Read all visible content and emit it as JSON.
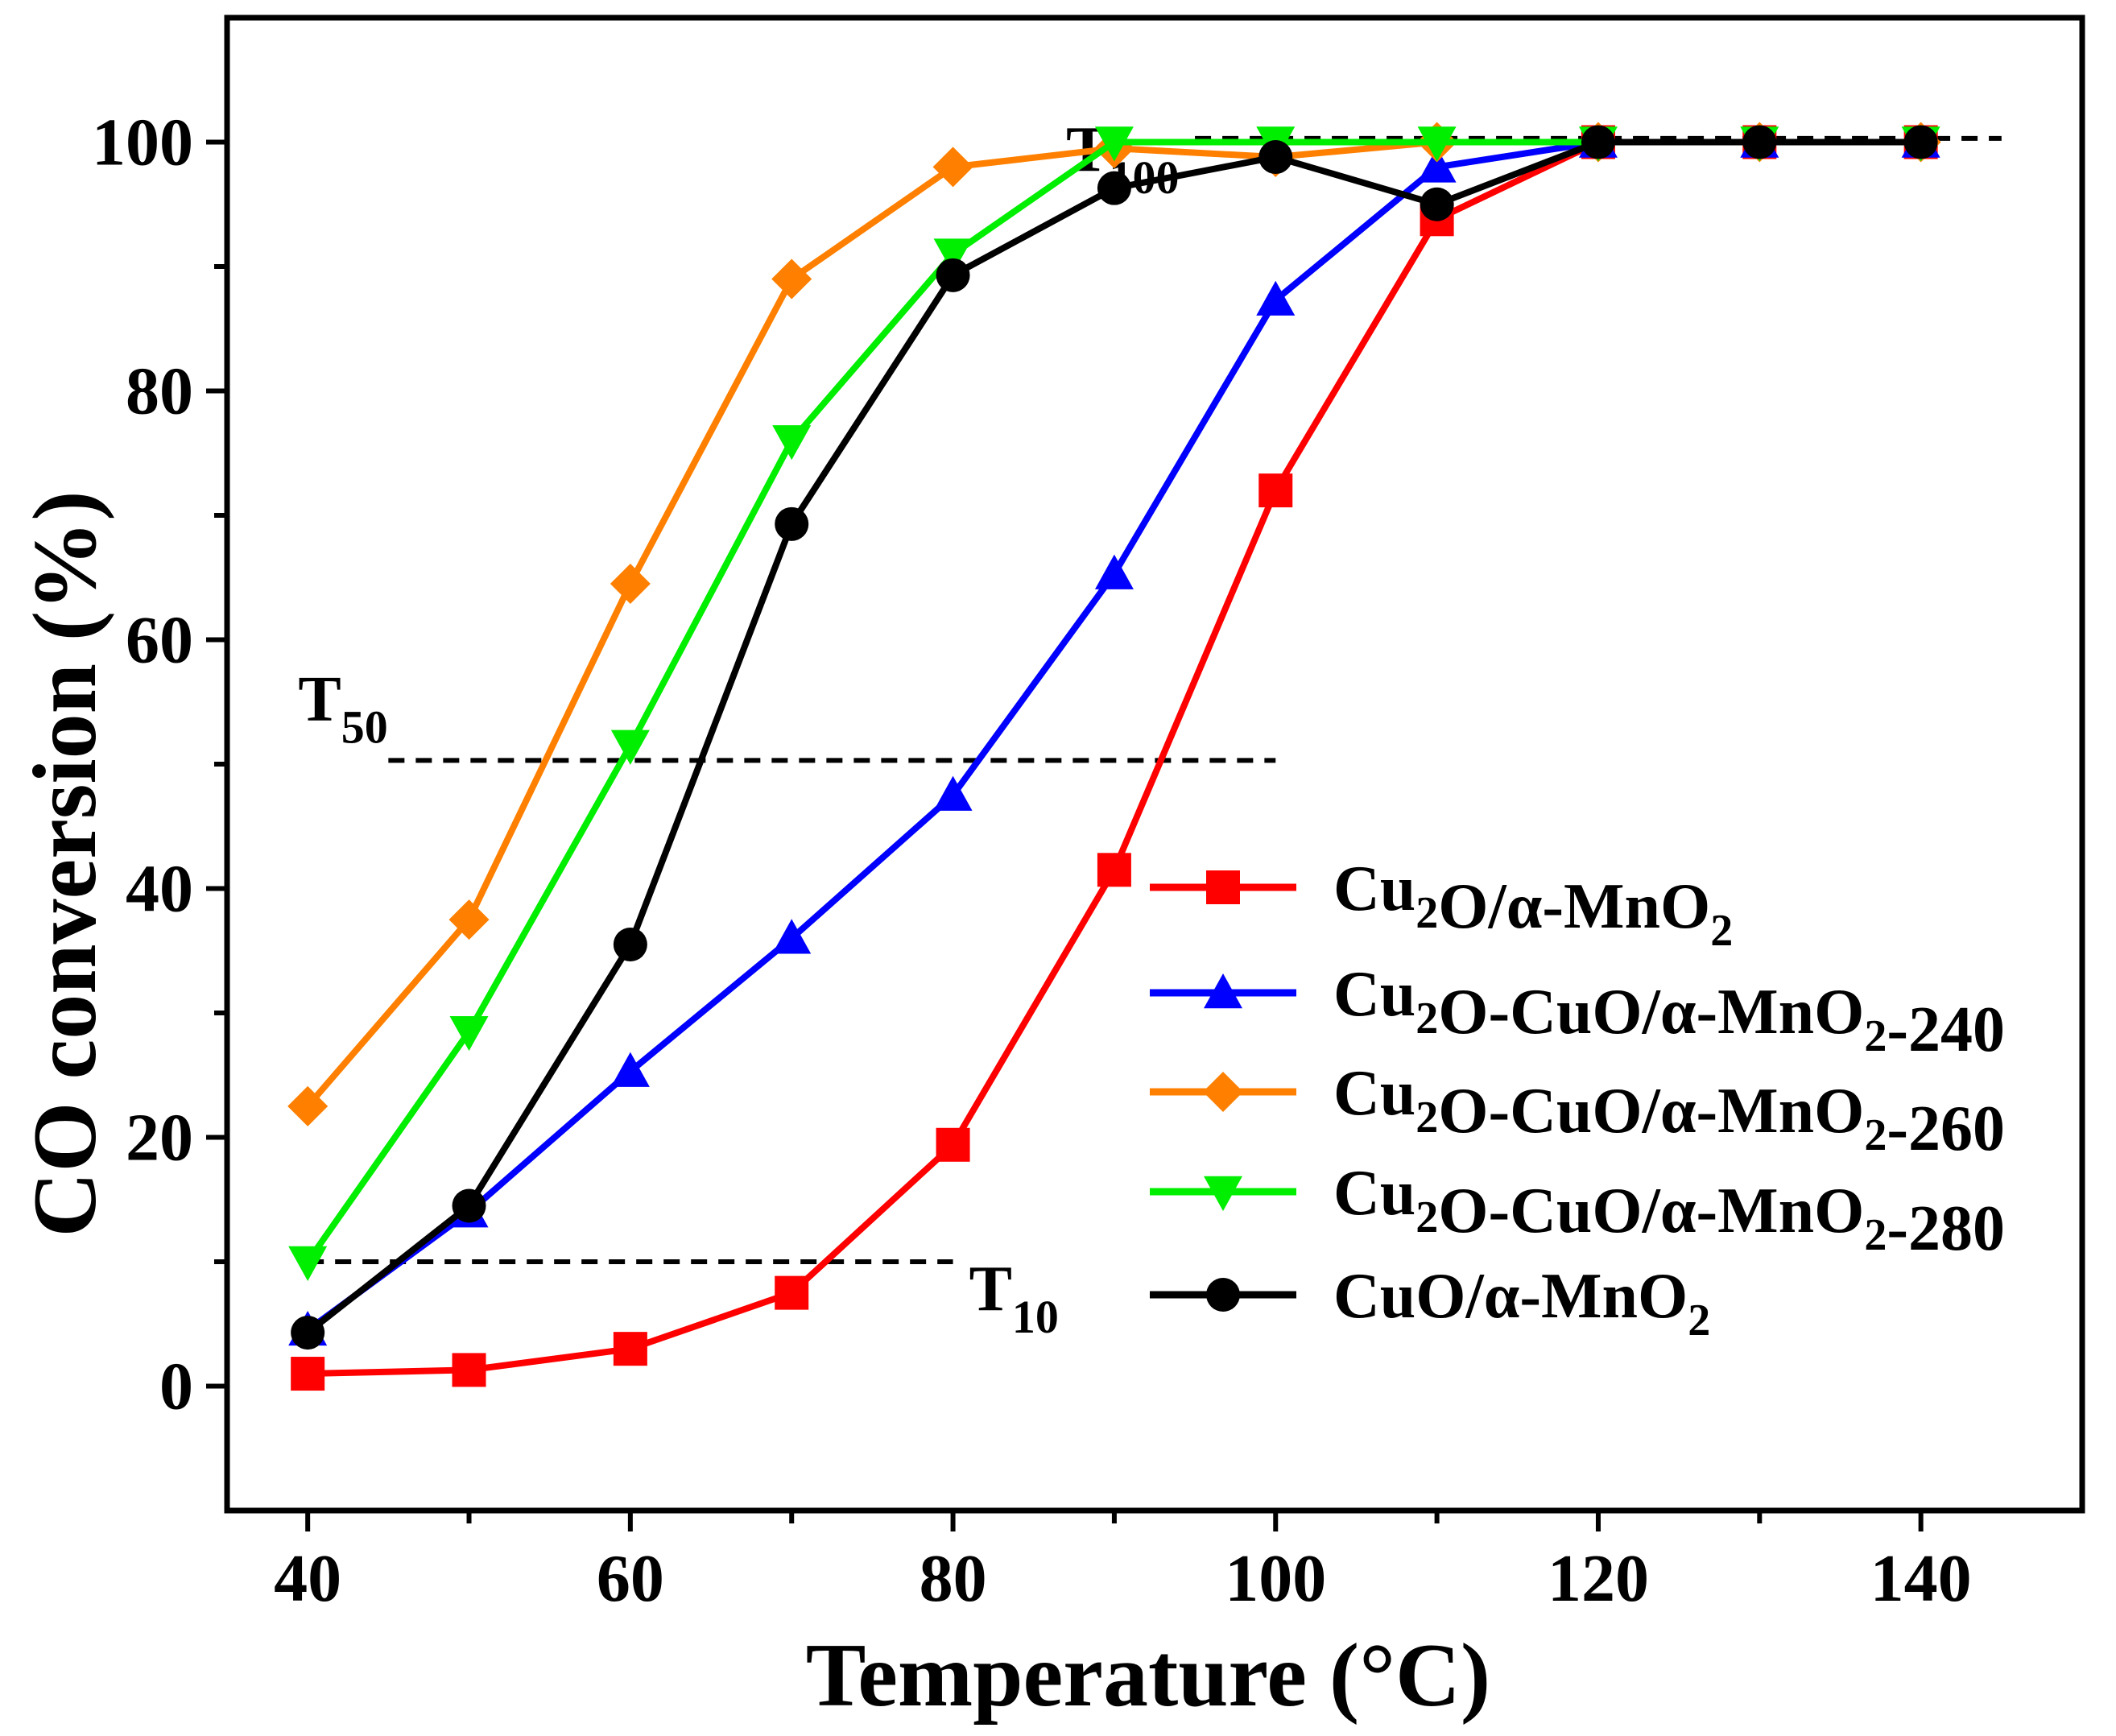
{
  "chart_data": {
    "type": "line",
    "xlabel": "Temperature (°C)",
    "ylabel": "CO conversion (%)",
    "xlim": [
      35,
      150
    ],
    "ylim": [
      -10,
      110
    ],
    "xticks": [
      40,
      60,
      80,
      100,
      120,
      140
    ],
    "yticks": [
      0,
      20,
      40,
      60,
      80,
      100
    ],
    "x": [
      40,
      50,
      60,
      70,
      80,
      90,
      100,
      110,
      120,
      130,
      140
    ],
    "series": [
      {
        "name": "Cu2O/α-MnO2",
        "label_parts": [
          [
            "Cu",
            ""
          ],
          [
            "2",
            "sub"
          ],
          [
            "O/α-MnO",
            ""
          ],
          [
            "2",
            "sub"
          ]
        ],
        "color": "#ff0000",
        "marker": "square",
        "values": [
          1.0,
          1.3,
          3.0,
          7.5,
          19.4,
          41.5,
          72.0,
          93.8,
          100,
          100,
          100
        ]
      },
      {
        "name": "Cu2O-CuO/α-MnO2-240",
        "label_parts": [
          [
            "Cu",
            ""
          ],
          [
            "2",
            "sub"
          ],
          [
            "O-CuO/α-MnO",
            ""
          ],
          [
            "2",
            "sub"
          ],
          [
            "-240",
            ""
          ]
        ],
        "color": "#0000ff",
        "marker": "triangle-up",
        "values": [
          4.5,
          14.0,
          25.3,
          36.0,
          47.5,
          65.3,
          87.3,
          98.0,
          100,
          100,
          100
        ]
      },
      {
        "name": "Cu2O-CuO/α-MnO2-260",
        "label_parts": [
          [
            "Cu",
            ""
          ],
          [
            "2",
            "sub"
          ],
          [
            "O-CuO/α-MnO",
            ""
          ],
          [
            "2",
            "sub"
          ],
          [
            "-260",
            ""
          ]
        ],
        "color": "#ff8000",
        "marker": "diamond",
        "values": [
          22.5,
          37.5,
          64.5,
          89.0,
          98.0,
          99.5,
          98.8,
          100,
          100,
          100,
          100
        ]
      },
      {
        "name": "Cu2O-CuO/α-MnO2-280",
        "label_parts": [
          [
            "Cu",
            ""
          ],
          [
            "2",
            "sub"
          ],
          [
            "O-CuO/α-MnO",
            ""
          ],
          [
            "2",
            "sub"
          ],
          [
            "-280",
            ""
          ]
        ],
        "color": "#00ee00",
        "marker": "triangle-down",
        "values": [
          10.0,
          28.5,
          51.5,
          76.0,
          91.0,
          100,
          100,
          100,
          100,
          100,
          100
        ]
      },
      {
        "name": "CuO/α-MnO2",
        "label_parts": [
          [
            "CuO/α-MnO",
            ""
          ],
          [
            "2",
            "sub"
          ]
        ],
        "color": "#000000",
        "marker": "circle",
        "values": [
          4.3,
          14.5,
          35.5,
          69.3,
          89.3,
          96.3,
          98.8,
          95.0,
          100,
          100,
          100
        ]
      }
    ],
    "reference_lines": [
      {
        "label": "T",
        "sub": "100",
        "y": 100.3,
        "x_range": [
          95,
          145
        ]
      },
      {
        "label": "T",
        "sub": "50",
        "y": 50.3,
        "x_range": [
          45,
          100
        ]
      },
      {
        "label": "T",
        "sub": "10",
        "y": 10.0,
        "x_range": [
          40,
          80
        ]
      }
    ],
    "legend": {
      "position": "lower-right"
    },
    "grid": false
  }
}
